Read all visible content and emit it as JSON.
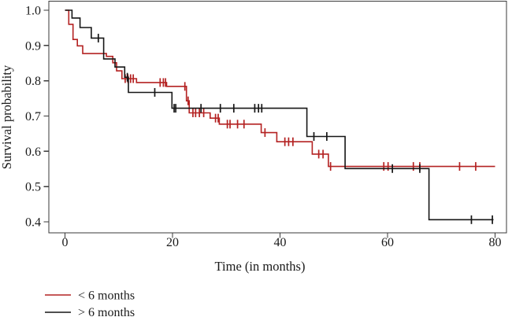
{
  "chart_data": {
    "type": "line",
    "subtype": "kaplan-meier-step-curves",
    "title": "",
    "xlabel": "Time (in months)",
    "ylabel": "Survival probability",
    "grid": false,
    "legend_position": "bottom-left-below-plot",
    "xlim": [
      -3,
      82.5
    ],
    "ylim": [
      0.37,
      1.025
    ],
    "xticks": {
      "values": [
        0,
        20,
        40,
        60,
        80
      ],
      "labels": [
        "0",
        "20",
        "40",
        "60",
        "80"
      ]
    },
    "yticks": {
      "values": [
        1.0,
        0.9,
        0.8,
        0.7,
        0.6,
        0.5,
        0.4
      ],
      "labels": [
        "1.0",
        "0.9",
        "0.8",
        "0.7",
        "0.6",
        "0.5",
        "0.4"
      ]
    },
    "frame_color": "#3a3a3a",
    "series": [
      {
        "name": "< 6 months",
        "color": "#b42222",
        "end_time": 80,
        "steps": [
          [
            0,
            1.0
          ],
          [
            0.7,
            0.96
          ],
          [
            1.5,
            0.917
          ],
          [
            2.3,
            0.899
          ],
          [
            3.3,
            0.877
          ],
          [
            7.7,
            0.869
          ],
          [
            8.9,
            0.851
          ],
          [
            9.6,
            0.828
          ],
          [
            10.6,
            0.806
          ],
          [
            13.3,
            0.795
          ],
          [
            18.9,
            0.784
          ],
          [
            22.6,
            0.743
          ],
          [
            23.1,
            0.709
          ],
          [
            27.0,
            0.694
          ],
          [
            28.7,
            0.677
          ],
          [
            36.5,
            0.653
          ],
          [
            39.4,
            0.627
          ],
          [
            46.0,
            0.592
          ],
          [
            49.0,
            0.557
          ]
        ],
        "censors": [
          [
            11.2,
            0.806
          ],
          [
            11.7,
            0.806
          ],
          [
            12.2,
            0.806
          ],
          [
            12.7,
            0.806
          ],
          [
            17.7,
            0.795
          ],
          [
            18.3,
            0.795
          ],
          [
            18.7,
            0.795
          ],
          [
            22.3,
            0.784
          ],
          [
            22.9,
            0.743
          ],
          [
            23.8,
            0.709
          ],
          [
            24.3,
            0.709
          ],
          [
            25.0,
            0.709
          ],
          [
            25.8,
            0.709
          ],
          [
            28.0,
            0.694
          ],
          [
            28.5,
            0.694
          ],
          [
            30.2,
            0.677
          ],
          [
            30.7,
            0.677
          ],
          [
            32.1,
            0.677
          ],
          [
            33.3,
            0.677
          ],
          [
            37.2,
            0.653
          ],
          [
            40.9,
            0.627
          ],
          [
            41.6,
            0.627
          ],
          [
            42.4,
            0.627
          ],
          [
            47.2,
            0.592
          ],
          [
            48.0,
            0.592
          ],
          [
            49.4,
            0.557
          ],
          [
            59.3,
            0.557
          ],
          [
            60.1,
            0.557
          ],
          [
            64.8,
            0.557
          ],
          [
            66.0,
            0.557
          ],
          [
            73.4,
            0.557
          ],
          [
            76.4,
            0.557
          ]
        ]
      },
      {
        "name": "> 6 months",
        "color": "#161616",
        "end_time": 79.7,
        "steps": [
          [
            0,
            1.0
          ],
          [
            1.3,
            0.978
          ],
          [
            2.8,
            0.951
          ],
          [
            4.9,
            0.921
          ],
          [
            7.2,
            0.862
          ],
          [
            9.3,
            0.839
          ],
          [
            11.1,
            0.81
          ],
          [
            11.8,
            0.767
          ],
          [
            19.9,
            0.722
          ],
          [
            45.0,
            0.642
          ],
          [
            52.1,
            0.551
          ],
          [
            67.7,
            0.406
          ]
        ],
        "censors": [
          [
            6.2,
            0.921
          ],
          [
            11.6,
            0.81
          ],
          [
            16.7,
            0.767
          ],
          [
            20.3,
            0.722
          ],
          [
            20.6,
            0.722
          ],
          [
            25.3,
            0.722
          ],
          [
            28.9,
            0.722
          ],
          [
            31.4,
            0.722
          ],
          [
            35.3,
            0.722
          ],
          [
            36.0,
            0.722
          ],
          [
            36.6,
            0.722
          ],
          [
            46.3,
            0.642
          ],
          [
            48.7,
            0.642
          ],
          [
            60.9,
            0.551
          ],
          [
            66.0,
            0.551
          ],
          [
            75.6,
            0.406
          ],
          [
            79.5,
            0.406
          ]
        ]
      }
    ]
  }
}
